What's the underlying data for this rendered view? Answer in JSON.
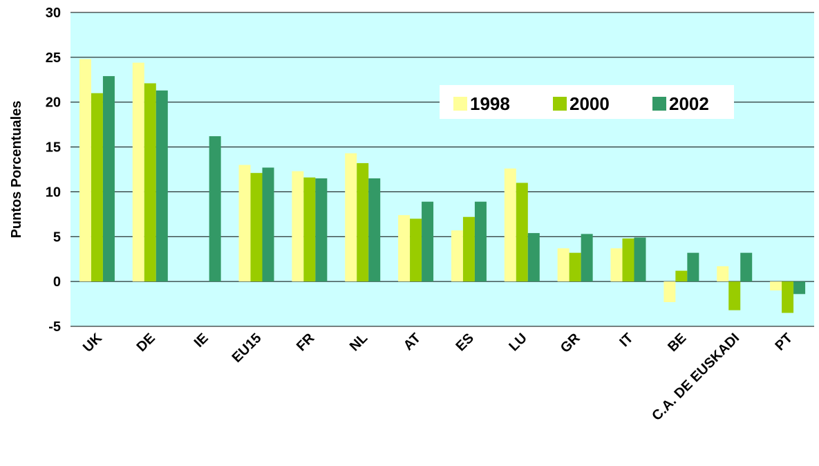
{
  "chart_data": {
    "type": "bar",
    "y_label": "Puntos Porcentuales",
    "categories": [
      "UK",
      "DE",
      "IE",
      "EU15",
      "FR",
      "NL",
      "AT",
      "ES",
      "LU",
      "GR",
      "IT",
      "BE",
      "C.A. DE EUSKADI",
      "PT"
    ],
    "series": [
      {
        "name": "1998",
        "color": "#ffff99",
        "values": [
          24.8,
          24.4,
          null,
          13.0,
          12.3,
          14.3,
          7.4,
          5.7,
          12.6,
          3.7,
          3.7,
          -2.3,
          1.7,
          -1.0
        ]
      },
      {
        "name": "2000",
        "color": "#99cc00",
        "values": [
          21.0,
          22.1,
          null,
          12.1,
          11.6,
          13.2,
          7.0,
          7.2,
          11.0,
          3.2,
          4.8,
          1.2,
          -3.2,
          -3.5
        ]
      },
      {
        "name": "2002",
        "color": "#339966",
        "values": [
          22.9,
          21.3,
          16.2,
          12.7,
          11.5,
          11.5,
          8.9,
          8.9,
          5.4,
          5.3,
          4.9,
          3.2,
          3.2,
          -1.4
        ]
      }
    ],
    "ylim": [
      -5,
      30
    ],
    "yticks": [
      -5,
      0,
      5,
      10,
      15,
      20,
      25,
      30
    ],
    "grid": true,
    "background": "#ccffff"
  }
}
